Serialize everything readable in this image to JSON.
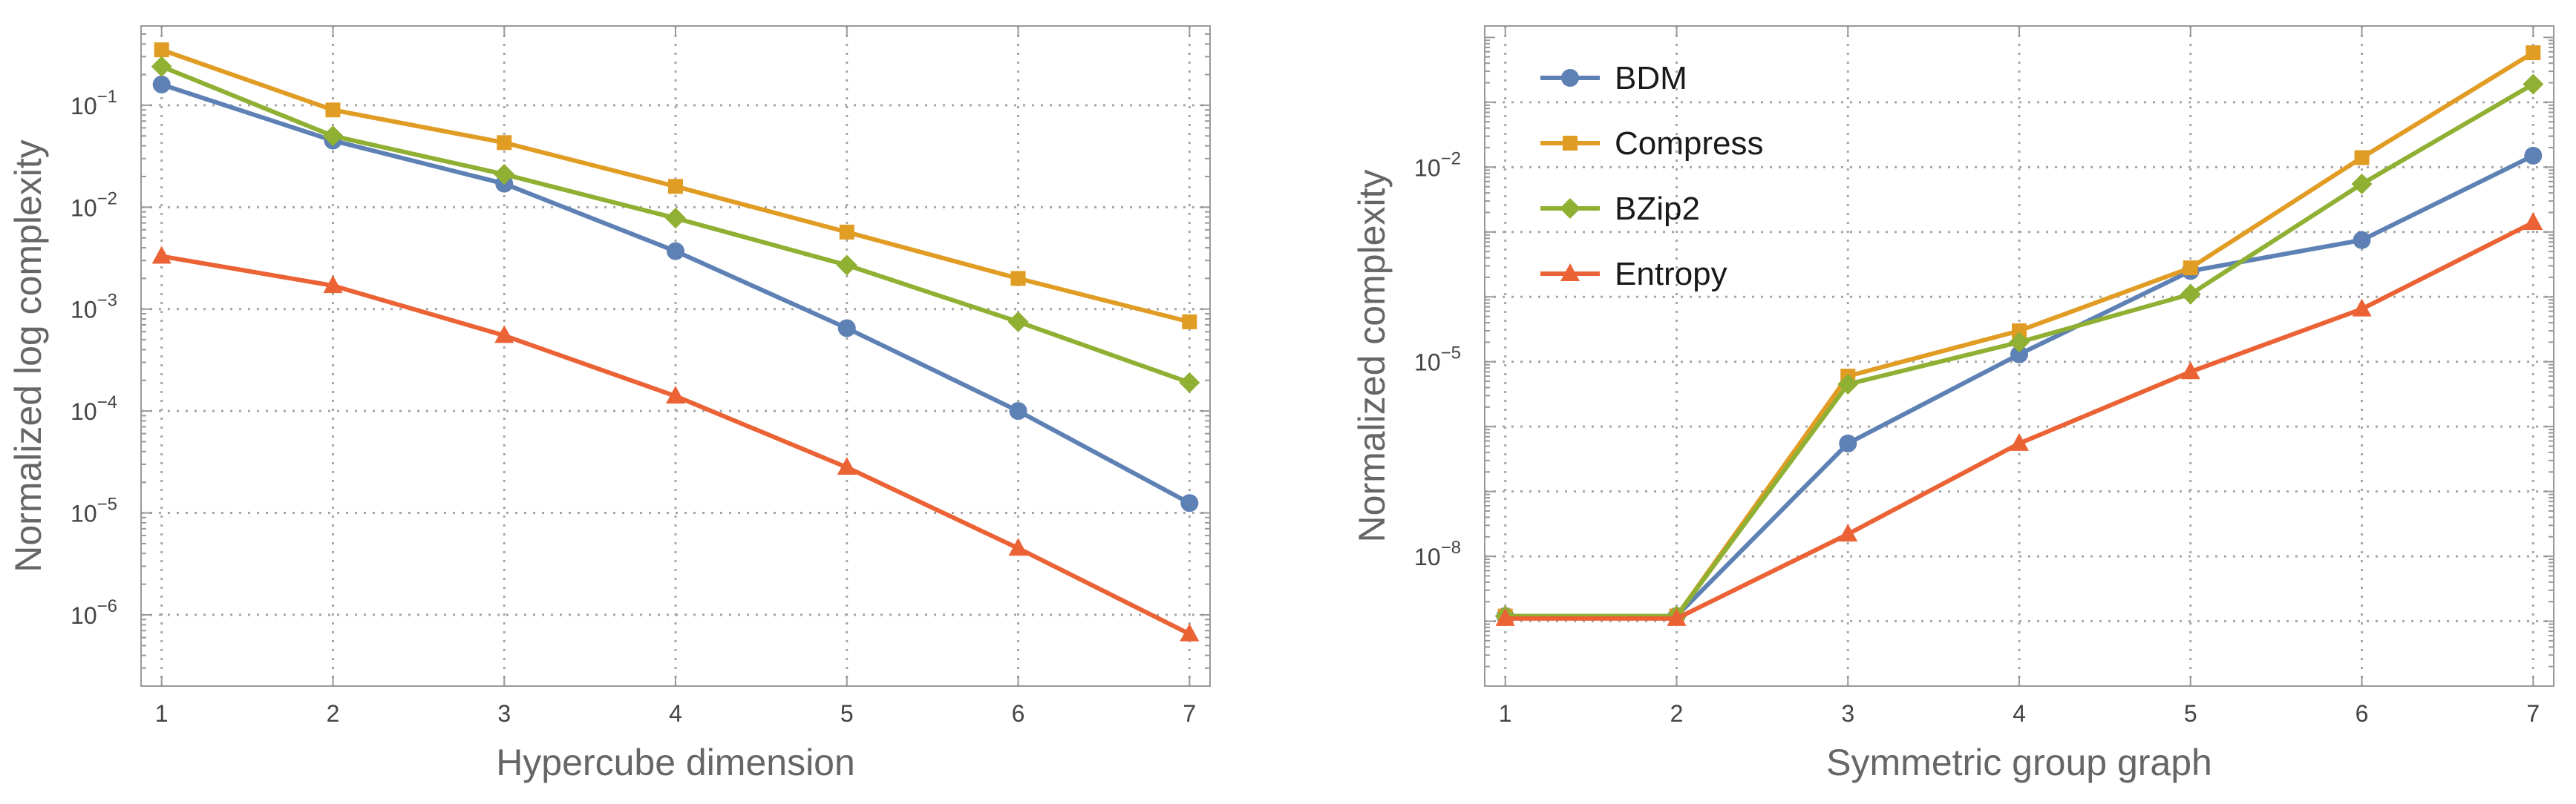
{
  "chart_data": [
    {
      "type": "line",
      "title": "",
      "xlabel": "Hypercube dimension",
      "ylabel": "Normalized log complexity",
      "yscale": "log",
      "x": [
        1,
        2,
        3,
        4,
        5,
        6,
        7
      ],
      "xlim": [
        0.88,
        7.12
      ],
      "ylim": [
        2e-07,
        0.6
      ],
      "xticks": [
        "1",
        "2",
        "3",
        "4",
        "5",
        "6",
        "7"
      ],
      "yticks": [
        {
          "value": 1e-06,
          "base": "10",
          "exp": "−6"
        },
        {
          "value": 1e-05,
          "base": "10",
          "exp": "−5"
        },
        {
          "value": 0.0001,
          "base": "10",
          "exp": "−4"
        },
        {
          "value": 0.001,
          "base": "10",
          "exp": "−3"
        },
        {
          "value": 0.01,
          "base": "10",
          "exp": "−2"
        },
        {
          "value": 0.1,
          "base": "10",
          "exp": "−1"
        }
      ],
      "grid": true,
      "legend": "none",
      "series": [
        {
          "name": "BDM",
          "color": "#5e81b5",
          "marker": "circle",
          "values": [
            0.16,
            0.045,
            0.017,
            0.0037,
            0.00065,
            0.0001,
            1.25e-05
          ]
        },
        {
          "name": "Compress",
          "color": "#e19c24",
          "marker": "square",
          "values": [
            0.35,
            0.09,
            0.043,
            0.016,
            0.0057,
            0.002,
            0.00075
          ]
        },
        {
          "name": "BZip2",
          "color": "#8fb032",
          "marker": "diamond",
          "values": [
            0.24,
            0.05,
            0.021,
            0.0078,
            0.0027,
            0.00075,
            0.00019
          ]
        },
        {
          "name": "Entropy",
          "color": "#eb6235",
          "marker": "triangle",
          "values": [
            0.0033,
            0.0017,
            0.00055,
            0.00014,
            2.8e-05,
            4.5e-06,
            6.5e-07
          ]
        }
      ]
    },
    {
      "type": "line",
      "title": "",
      "xlabel": "Symmetric group graph",
      "ylabel": "Normalized complexity",
      "yscale": "log",
      "x": [
        1,
        2,
        3,
        4,
        5,
        6,
        7
      ],
      "xlim": [
        0.88,
        7.12
      ],
      "ylim": [
        1e-10,
        1.5
      ],
      "xticks": [
        "1",
        "2",
        "3",
        "4",
        "5",
        "6",
        "7"
      ],
      "yticks": [
        {
          "value": 1e-08,
          "base": "10",
          "exp": "−8"
        },
        {
          "value": 1e-05,
          "base": "10",
          "exp": "−5"
        },
        {
          "value": 0.01,
          "base": "10",
          "exp": "−2"
        }
      ],
      "ygrid_values": [
        1e-09,
        1e-08,
        1e-07,
        1e-06,
        1e-05,
        0.0001,
        0.001,
        0.01,
        0.1
      ],
      "grid": true,
      "legend": "top-left",
      "series": [
        {
          "name": "BDM",
          "color": "#5e81b5",
          "marker": "circle",
          "values": [
            1.2e-09,
            1.2e-09,
            5.5e-07,
            1.3e-05,
            0.00025,
            0.00075,
            0.015
          ]
        },
        {
          "name": "Compress",
          "color": "#e19c24",
          "marker": "square",
          "values": [
            1.2e-09,
            1.2e-09,
            6e-06,
            3e-05,
            0.00028,
            0.014,
            0.58
          ]
        },
        {
          "name": "BZip2",
          "color": "#8fb032",
          "marker": "diamond",
          "values": [
            1.2e-09,
            1.2e-09,
            4.5e-06,
            2e-05,
            0.00011,
            0.0055,
            0.19
          ]
        },
        {
          "name": "Entropy",
          "color": "#eb6235",
          "marker": "triangle",
          "values": [
            1.1e-09,
            1.1e-09,
            2.2e-08,
            5.5e-07,
            7e-06,
            6.5e-05,
            0.0014
          ]
        }
      ]
    }
  ]
}
